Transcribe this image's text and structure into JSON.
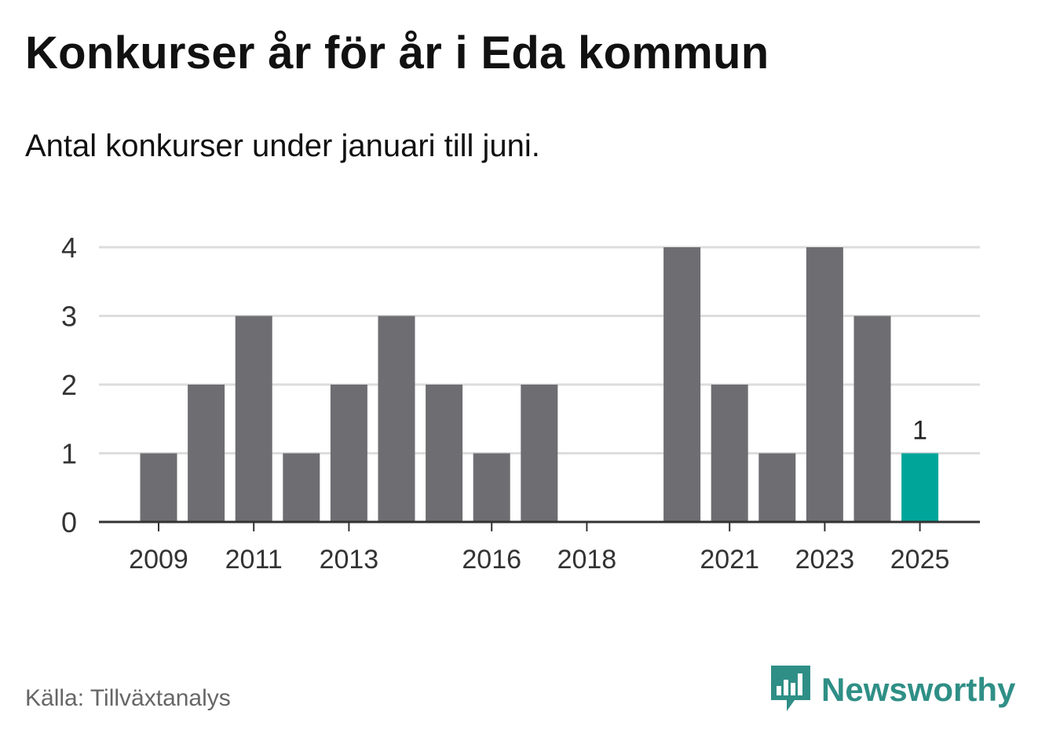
{
  "title": "Konkurser år för år i Eda kommun",
  "subtitle": "Antal konkurser under januari till juni.",
  "source": "Källa: Tillväxtanalys",
  "brand": {
    "name": "Newsworthy",
    "icon": "newsworthy-logo-icon",
    "color": "#2f8f86"
  },
  "chart_data": {
    "type": "bar",
    "categories": [
      "2009",
      "2010",
      "2011",
      "2012",
      "2013",
      "2014",
      "2015",
      "2016",
      "2017",
      "2018",
      "2019",
      "2020",
      "2021",
      "2022",
      "2023",
      "2024",
      "2025"
    ],
    "values": [
      1,
      2,
      3,
      1,
      2,
      3,
      2,
      1,
      2,
      0,
      0,
      4,
      2,
      1,
      4,
      3,
      1
    ],
    "x_tick_labels": [
      "2009",
      "2011",
      "2013",
      "2016",
      "2018",
      "2021",
      "2023",
      "2025"
    ],
    "ylim": [
      0,
      4
    ],
    "y_ticks": [
      0,
      1,
      2,
      3,
      4
    ],
    "grid": true,
    "highlight": {
      "category": "2025",
      "label": "1"
    },
    "colors": {
      "bar": "#6e6d72",
      "highlight": "#00a59a",
      "grid": "#dddddd",
      "axis": "#333333"
    },
    "xlabel": "",
    "ylabel": ""
  }
}
